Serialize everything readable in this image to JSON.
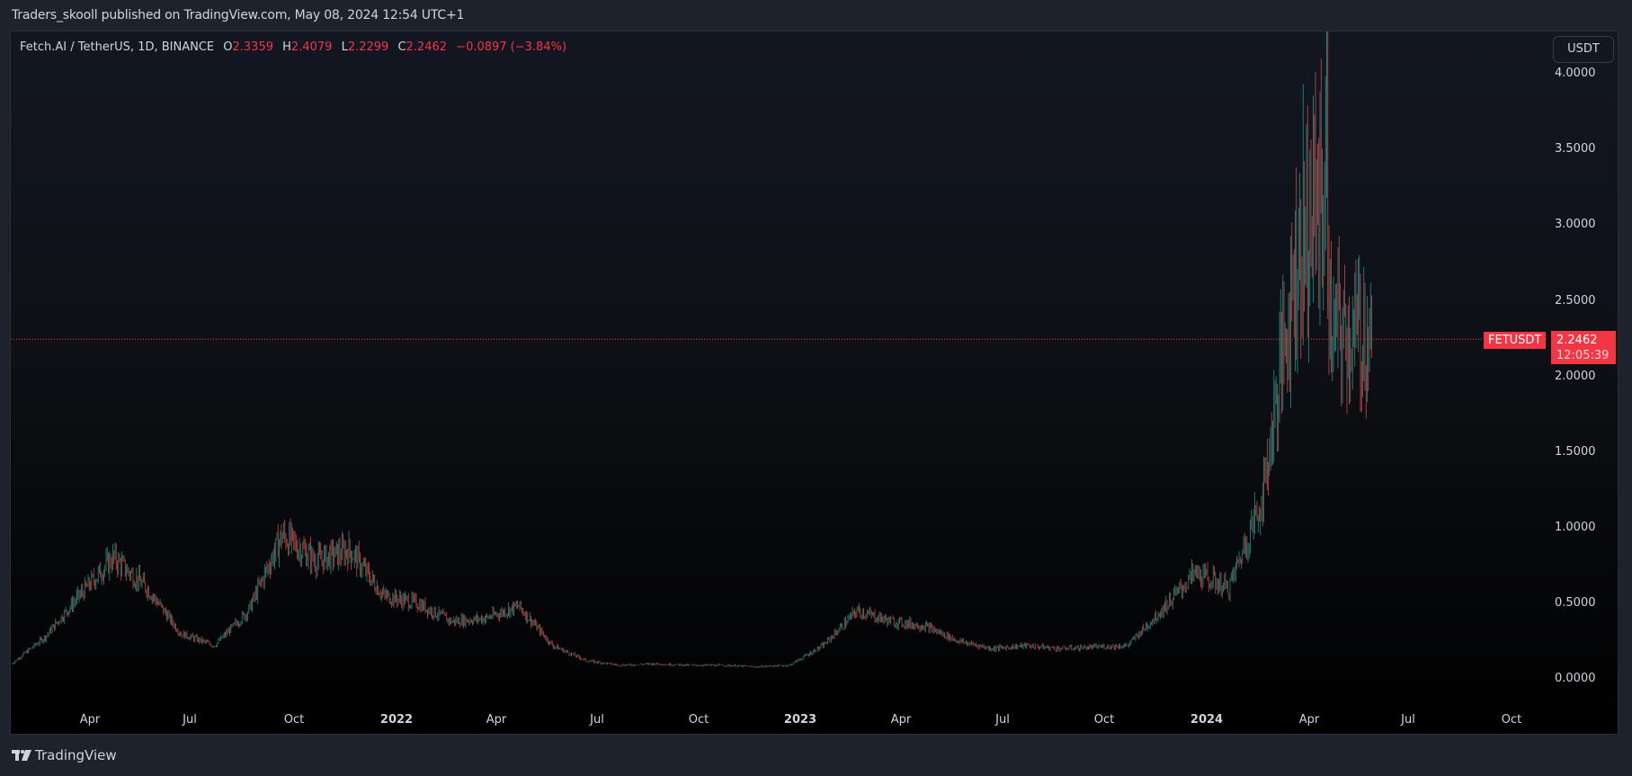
{
  "header": {
    "published": "Traders_skooll published on TradingView.com, May 08, 2024 12:54 UTC+1"
  },
  "legend": {
    "symbol": "Fetch.AI / TetherUS, 1D, BINANCE",
    "o_label": "O",
    "o": "2.3359",
    "h_label": "H",
    "h": "2.4079",
    "l_label": "L",
    "l": "2.2299",
    "c_label": "C",
    "c": "2.2462",
    "change": "−0.0897 (−3.84%)"
  },
  "currency_button": "USDT",
  "price_tag": {
    "symbol": "FETUSDT",
    "price": "2.2462",
    "countdown": "12:05:39",
    "color": "#f23645"
  },
  "footer": {
    "brand": "TradingView"
  },
  "colors": {
    "up": "#26a69a",
    "down": "#ef5350",
    "last_price": "#f23645",
    "bg_outer": "#1e222d"
  },
  "chart_data": {
    "type": "candlestick",
    "title": "Fetch.AI / TetherUS, 1D, BINANCE",
    "xlabel": "",
    "ylabel": "USDT",
    "ylim": [
      -0.2,
      4.1
    ],
    "y_ticks": [
      "4.0000",
      "3.5000",
      "3.0000",
      "2.5000",
      "2.0000",
      "1.5000",
      "1.0000",
      "0.5000",
      "0.0000"
    ],
    "x_ticks": [
      {
        "label": "Apr",
        "bold": false
      },
      {
        "label": "Jul",
        "bold": false
      },
      {
        "label": "Oct",
        "bold": false
      },
      {
        "label": "2022",
        "bold": true
      },
      {
        "label": "Apr",
        "bold": false
      },
      {
        "label": "Jul",
        "bold": false
      },
      {
        "label": "Oct",
        "bold": false
      },
      {
        "label": "2023",
        "bold": true
      },
      {
        "label": "Apr",
        "bold": false
      },
      {
        "label": "Jul",
        "bold": false
      },
      {
        "label": "Oct",
        "bold": false
      },
      {
        "label": "2024",
        "bold": true
      },
      {
        "label": "Apr",
        "bold": false
      },
      {
        "label": "Jul",
        "bold": false
      },
      {
        "label": "Oct",
        "bold": false
      }
    ],
    "grid": false,
    "last_price": 2.2462,
    "approx_closes": [
      {
        "date": "2021-01",
        "value": 0.1
      },
      {
        "date": "2021-02",
        "value": 0.28
      },
      {
        "date": "2021-03",
        "value": 0.55
      },
      {
        "date": "2021-04",
        "value": 0.8
      },
      {
        "date": "2021-05",
        "value": 0.6
      },
      {
        "date": "2021-06",
        "value": 0.3
      },
      {
        "date": "2021-07",
        "value": 0.22
      },
      {
        "date": "2021-08",
        "value": 0.45
      },
      {
        "date": "2021-09",
        "value": 0.95
      },
      {
        "date": "2021-10",
        "value": 0.78
      },
      {
        "date": "2021-11",
        "value": 0.85
      },
      {
        "date": "2021-12",
        "value": 0.55
      },
      {
        "date": "2022-01",
        "value": 0.5
      },
      {
        "date": "2022-02",
        "value": 0.38
      },
      {
        "date": "2022-03",
        "value": 0.4
      },
      {
        "date": "2022-04",
        "value": 0.48
      },
      {
        "date": "2022-05",
        "value": 0.22
      },
      {
        "date": "2022-06",
        "value": 0.12
      },
      {
        "date": "2022-07",
        "value": 0.09
      },
      {
        "date": "2022-08",
        "value": 0.1
      },
      {
        "date": "2022-09",
        "value": 0.09
      },
      {
        "date": "2022-10",
        "value": 0.09
      },
      {
        "date": "2022-11",
        "value": 0.08
      },
      {
        "date": "2022-12",
        "value": 0.09
      },
      {
        "date": "2023-01",
        "value": 0.22
      },
      {
        "date": "2023-02",
        "value": 0.45
      },
      {
        "date": "2023-03",
        "value": 0.38
      },
      {
        "date": "2023-04",
        "value": 0.35
      },
      {
        "date": "2023-05",
        "value": 0.25
      },
      {
        "date": "2023-06",
        "value": 0.2
      },
      {
        "date": "2023-07",
        "value": 0.22
      },
      {
        "date": "2023-08",
        "value": 0.2
      },
      {
        "date": "2023-09",
        "value": 0.21
      },
      {
        "date": "2023-10",
        "value": 0.22
      },
      {
        "date": "2023-11",
        "value": 0.45
      },
      {
        "date": "2023-12",
        "value": 0.7
      },
      {
        "date": "2024-01",
        "value": 0.6
      },
      {
        "date": "2024-02",
        "value": 1.2
      },
      {
        "date": "2024-03",
        "value": 2.8
      },
      {
        "date": "2024-03-28",
        "value": 3.3
      },
      {
        "date": "2024-04",
        "value": 2.3
      },
      {
        "date": "2024-05-08",
        "value": 2.2462
      }
    ]
  }
}
